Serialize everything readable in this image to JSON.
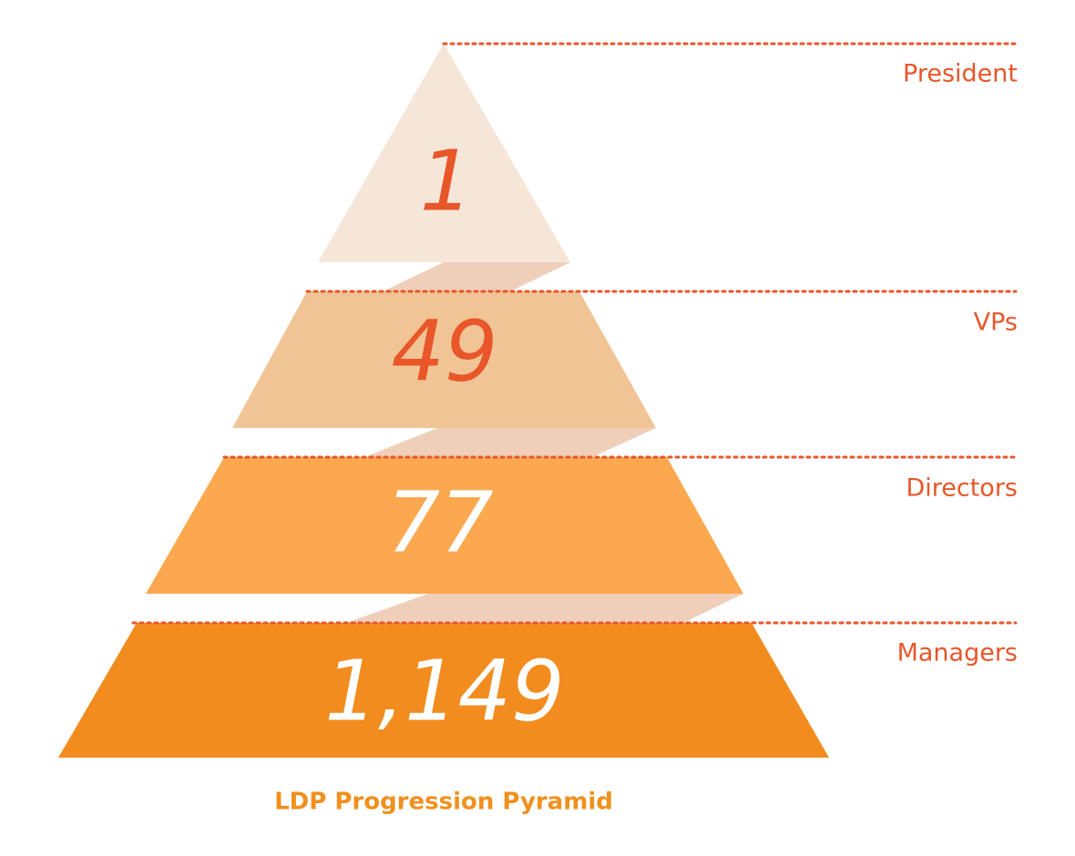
{
  "chart_data": {
    "type": "pyramid",
    "title": "LDP Progression Pyramid",
    "categories": [
      "President",
      "VPs",
      "Directors",
      "Managers"
    ],
    "values": [
      1,
      49,
      77,
      1149
    ],
    "value_labels": [
      "1",
      "49",
      "77",
      "1,149"
    ],
    "colors": [
      "#f5e6d8",
      "#f1c495",
      "#fba84f",
      "#f28c1e"
    ]
  }
}
